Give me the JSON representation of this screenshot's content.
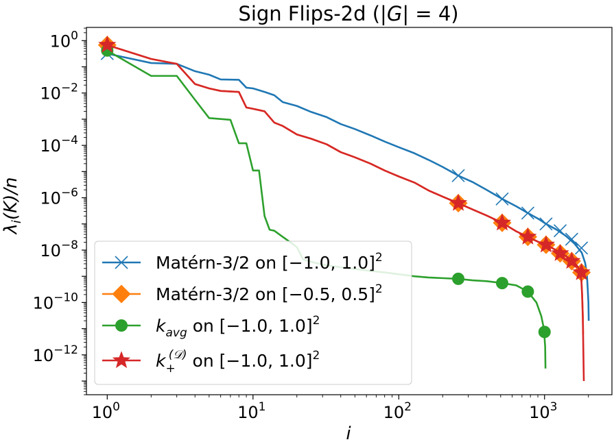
{
  "chart_data": {
    "type": "line",
    "title": "Sign Flips-2d (|G| = 4)",
    "title_parts": {
      "prefix": "Sign Flips-2d (|",
      "var": "G",
      "suffix": "| = 4)"
    },
    "xlabel": "i",
    "ylabel": "λi(K)/n",
    "ylabel_parts": {
      "lambda": "λ",
      "sub": "i",
      "rest": "(K)/n"
    },
    "xscale": "log",
    "yscale": "log",
    "xlim": [
      0.72,
      2900
    ],
    "ylim": [
      3e-14,
      3.2
    ],
    "x_ticks": [
      {
        "value": 1,
        "base": "10",
        "exp": "0"
      },
      {
        "value": 10,
        "base": "10",
        "exp": "1"
      },
      {
        "value": 100,
        "base": "10",
        "exp": "2"
      },
      {
        "value": 1000,
        "base": "10",
        "exp": "3"
      }
    ],
    "y_ticks": [
      {
        "value": 1,
        "base": "10",
        "exp": "0"
      },
      {
        "value": 0.01,
        "base": "10",
        "exp": "−2"
      },
      {
        "value": 0.0001,
        "base": "10",
        "exp": "−4"
      },
      {
        "value": 1e-06,
        "base": "10",
        "exp": "−6"
      },
      {
        "value": 1e-08,
        "base": "10",
        "exp": "−8"
      },
      {
        "value": 1e-10,
        "base": "10",
        "exp": "−10"
      },
      {
        "value": 1e-12,
        "base": "10",
        "exp": "−12"
      }
    ],
    "legend_position": "lower-left",
    "series": [
      {
        "name": "Matérn-3/2 on [−1.0, 1.0]^2",
        "legend_main": "Matérn-3/2 on [−1.0, 1.0]",
        "legend_sup": "2",
        "color": "#1f77b4",
        "marker": "x",
        "x": [
          1,
          2,
          3,
          4,
          5,
          6,
          8,
          9,
          10,
          12,
          14,
          16,
          20,
          25,
          32,
          40,
          50,
          64,
          80,
          100,
          128,
          160,
          200,
          256,
          320,
          400,
          512,
          640,
          768,
          900,
          1024,
          1200,
          1400,
          1600,
          1800,
          1900,
          1950,
          1980,
          2000,
          2010
        ],
        "y": [
          0.32,
          0.14,
          0.13,
          0.068,
          0.05,
          0.033,
          0.032,
          0.016,
          0.015,
          0.011,
          0.0082,
          0.0045,
          0.0032,
          0.0019,
          0.0012,
          0.00065,
          0.00042,
          0.00024,
          0.00014,
          8.5e-05,
          5e-05,
          2.8e-05,
          1.5e-05,
          7e-06,
          4e-06,
          2e-06,
          9e-07,
          4.7e-07,
          2.6e-07,
          1.6e-07,
          1e-07,
          6.2e-08,
          3.5e-08,
          1.8e-08,
          8e-09,
          3.2e-09,
          1.3e-09,
          3e-10,
          1e-10,
          2e-11
        ],
        "marker_x": [
          1,
          256,
          512,
          768,
          1024,
          1280,
          1536,
          1792
        ],
        "marker_y": [
          0.32,
          7e-06,
          9e-07,
          2.6e-07,
          1e-07,
          5.5e-08,
          2.6e-08,
          1.2e-08
        ]
      },
      {
        "name": "Matérn-3/2 on [−0.5, 0.5]^2",
        "legend_main": "Matérn-3/2 on [−0.5, 0.5]",
        "legend_sup": "2",
        "color": "#ff7f0e",
        "marker": "D",
        "x": [
          1,
          2,
          3,
          4,
          5,
          6,
          8,
          9,
          10,
          12,
          14,
          16,
          20,
          25,
          32,
          40,
          50,
          64,
          80,
          100,
          128,
          160,
          200,
          256,
          320,
          400,
          512,
          640,
          768,
          900,
          1024,
          1200,
          1400,
          1600,
          1700,
          1750,
          1790,
          1810,
          1830,
          1840
        ],
        "y": [
          0.68,
          0.2,
          0.13,
          0.022,
          0.015,
          0.012,
          0.011,
          0.0028,
          0.0025,
          0.002,
          0.00074,
          0.00055,
          0.00026,
          0.00018,
          0.00011,
          5.5e-05,
          3.5e-05,
          2e-05,
          1.1e-05,
          6.5e-06,
          3.8e-06,
          1.9e-06,
          1.1e-06,
          6.2e-07,
          3.6e-07,
          2.1e-07,
          1.1e-07,
          5.2e-08,
          3.2e-08,
          2.1e-08,
          1.6e-08,
          1e-08,
          6e-09,
          3.4e-09,
          2.2e-09,
          1.4e-09,
          7e-10,
          2e-10,
          3e-11,
          6e-12
        ],
        "marker_x": [
          1,
          256,
          512,
          768,
          1024,
          1280,
          1536,
          1792
        ],
        "marker_y": [
          0.68,
          6.2e-07,
          1.1e-07,
          3.2e-08,
          1.6e-08,
          7.5e-09,
          3.8e-09,
          1.4e-09
        ]
      },
      {
        "name": "k_avg on [−1.0, 1.0]^2",
        "legend_main_k": "k",
        "legend_sub": "avg",
        "legend_rest": " on [−1.0, 1.0]",
        "legend_sup": "2",
        "color": "#2ca02c",
        "marker": "o",
        "x": [
          1,
          2,
          3,
          4,
          5,
          7,
          8,
          9,
          10,
          11,
          12,
          13,
          14,
          16,
          18,
          20,
          22,
          25,
          30,
          40,
          50,
          64,
          80,
          100,
          128,
          160,
          200,
          256,
          320,
          400,
          512,
          640,
          768,
          880,
          950,
          990,
          1010,
          1015
        ],
        "y": [
          0.42,
          0.045,
          0.045,
          0.0055,
          0.0011,
          0.00095,
          0.00012,
          0.00012,
          1.1e-05,
          1.1e-05,
          2e-07,
          6e-08,
          5.5e-08,
          3.2e-08,
          2e-08,
          1.3e-08,
          4.5e-09,
          3.6e-09,
          2.8e-09,
          2.2e-09,
          1.9e-09,
          1.6e-09,
          1.4e-09,
          1.2e-09,
          1e-09,
          9e-10,
          8.5e-10,
          8e-10,
          7e-10,
          6.5e-10,
          5.5e-10,
          4.5e-10,
          2.6e-10,
          1e-10,
          3e-11,
          1e-11,
          2e-12,
          3e-13
        ],
        "marker_x": [
          1,
          256,
          512,
          768,
          1000
        ],
        "marker_y": [
          0.42,
          8e-10,
          5.5e-10,
          2.6e-10,
          7.5e-12
        ]
      },
      {
        "name": "k+^(D) on [−1.0, 1.0]^2",
        "legend_main_k": "k",
        "legend_sub": "+",
        "legend_supD": "(𝒟)",
        "legend_rest": " on [−1.0, 1.0]",
        "legend_sup": "2",
        "color": "#d62728",
        "marker": "*",
        "x": [
          1,
          2,
          3,
          4,
          5,
          6,
          8,
          9,
          10,
          12,
          14,
          16,
          20,
          25,
          32,
          40,
          50,
          64,
          80,
          100,
          128,
          160,
          200,
          256,
          320,
          400,
          512,
          640,
          768,
          900,
          1024,
          1200,
          1400,
          1600,
          1700,
          1750,
          1790,
          1810,
          1830,
          1860
        ],
        "y": [
          0.68,
          0.2,
          0.13,
          0.022,
          0.015,
          0.012,
          0.011,
          0.0028,
          0.0025,
          0.002,
          0.00074,
          0.00055,
          0.00026,
          0.00018,
          0.00011,
          5.5e-05,
          3.5e-05,
          2e-05,
          1.1e-05,
          6.5e-06,
          3.8e-06,
          1.9e-06,
          1.1e-06,
          6.2e-07,
          3.6e-07,
          2.1e-07,
          1.1e-07,
          5.2e-08,
          3.2e-08,
          2.1e-08,
          1.6e-08,
          1e-08,
          6e-09,
          3.4e-09,
          2.2e-09,
          1.4e-09,
          7e-10,
          2e-10,
          3e-11,
          1e-13
        ],
        "marker_x": [
          1,
          256,
          512,
          768,
          1024,
          1280,
          1536,
          1792
        ],
        "marker_y": [
          0.68,
          6.2e-07,
          1.1e-07,
          3.2e-08,
          1.6e-08,
          7.5e-09,
          3.8e-09,
          1.4e-09
        ]
      }
    ]
  }
}
